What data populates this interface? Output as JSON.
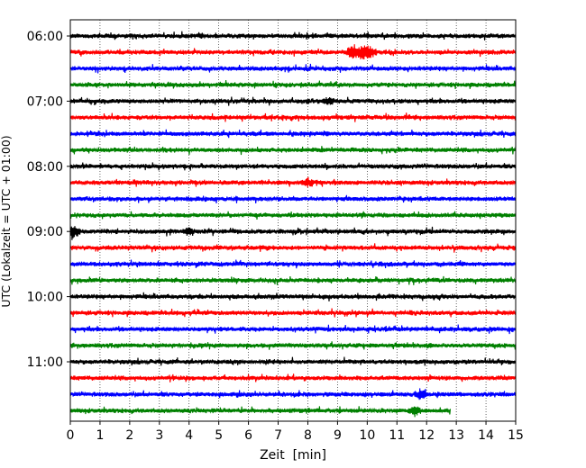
{
  "chart_data": {
    "type": "line",
    "xlabel": "Zeit  [min]",
    "ylabel": "UTC (Lokalzeit = UTC + 01:00)",
    "xlim": [
      0,
      15
    ],
    "x_ticks": [
      0,
      1,
      2,
      3,
      4,
      5,
      6,
      7,
      8,
      9,
      10,
      11,
      12,
      13,
      14,
      15
    ],
    "y_tick_labels": [
      "06:00",
      "07:00",
      "08:00",
      "09:00",
      "10:00",
      "11:00"
    ],
    "grid": "vertical dotted at each minute",
    "trace_colors": [
      "#000000",
      "#ff0000",
      "#0000ff",
      "#008000"
    ],
    "series": [
      {
        "values": [
          0,
          15
        ]
      },
      {
        "values": [
          0,
          15
        ]
      },
      {
        "values": [
          0,
          15
        ]
      },
      {
        "values": [
          0,
          15
        ]
      },
      {
        "values": [
          0,
          15
        ]
      },
      {
        "values": [
          0,
          15
        ]
      },
      {
        "values": [
          0,
          15
        ]
      },
      {
        "values": [
          0,
          15
        ]
      },
      {
        "values": [
          0,
          15
        ]
      },
      {
        "values": [
          0,
          15
        ]
      },
      {
        "values": [
          0,
          15
        ]
      },
      {
        "values": [
          0,
          15
        ]
      },
      {
        "values": [
          0,
          15
        ]
      },
      {
        "values": [
          0,
          15
        ]
      },
      {
        "values": [
          0,
          15
        ]
      },
      {
        "values": [
          0,
          15
        ]
      },
      {
        "values": [
          0,
          15
        ]
      },
      {
        "values": [
          0,
          15
        ]
      },
      {
        "values": [
          0,
          15
        ]
      },
      {
        "values": [
          0,
          15
        ]
      },
      {
        "values": [
          0,
          15
        ]
      },
      {
        "values": [
          0,
          15
        ]
      },
      {
        "values": [
          0,
          15
        ]
      },
      {
        "values": [
          0,
          12.8
        ]
      }
    ]
  }
}
